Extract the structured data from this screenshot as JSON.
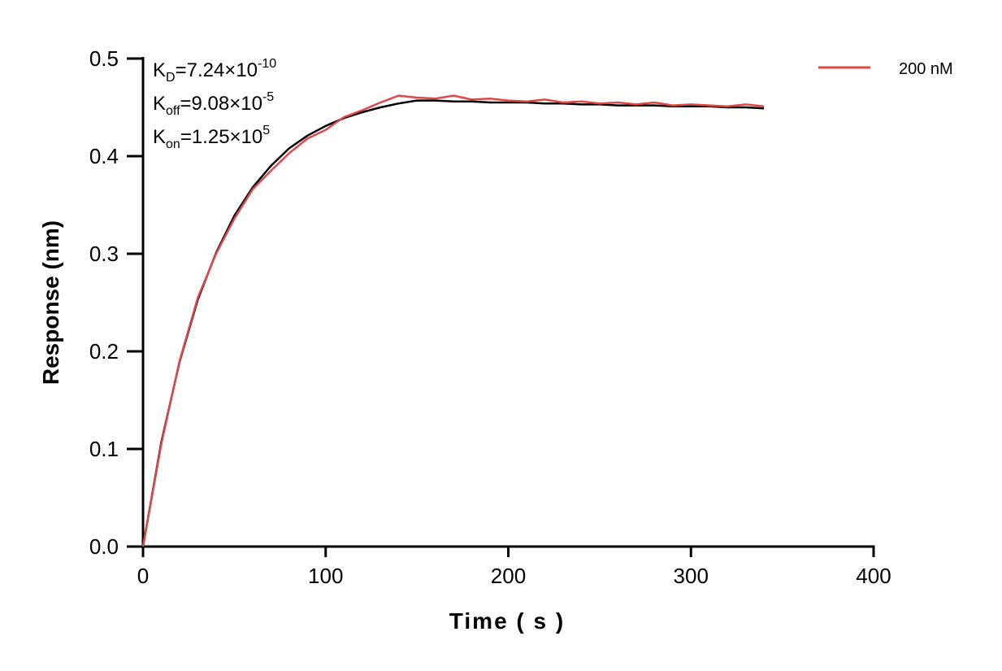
{
  "chart_data": {
    "type": "line",
    "title": "",
    "xlabel": "Time ( s )",
    "ylabel": "Response (nm)",
    "xlim": [
      0,
      400
    ],
    "ylim": [
      0,
      0.5
    ],
    "xticks": [
      "0",
      "100",
      "200",
      "300",
      "400"
    ],
    "yticks": [
      "0.0",
      "0.1",
      "0.2",
      "0.3",
      "0.4",
      "0.5"
    ],
    "grid": false,
    "legend_position": "top-right",
    "annotations": [
      {
        "base": "K",
        "sub": "D",
        "value": "=7.24×10",
        "exp": "-10"
      },
      {
        "base": "K",
        "sub": "off",
        "value": "=9.08×10",
        "exp": "-5"
      },
      {
        "base": "K",
        "sub": "on",
        "value": "=1.25×10",
        "exp": "5"
      }
    ],
    "x": [
      0,
      10,
      20,
      30,
      40,
      50,
      60,
      70,
      80,
      90,
      100,
      110,
      120,
      130,
      140,
      150,
      160,
      170,
      180,
      190,
      200,
      210,
      220,
      230,
      240,
      250,
      260,
      270,
      280,
      290,
      300,
      310,
      320,
      330,
      340
    ],
    "series": [
      {
        "name": "200 nM",
        "color": "#e04848",
        "values": [
          0,
          0.105,
          0.19,
          0.255,
          0.3,
          0.336,
          0.366,
          0.385,
          0.403,
          0.418,
          0.427,
          0.44,
          0.447,
          0.455,
          0.462,
          0.46,
          0.459,
          0.462,
          0.458,
          0.459,
          0.457,
          0.456,
          0.458,
          0.455,
          0.456,
          0.454,
          0.455,
          0.453,
          0.455,
          0.452,
          0.453,
          0.452,
          0.451,
          0.453,
          0.451
        ]
      },
      {
        "color": "#000000",
        "values": [
          0,
          0.107,
          0.189,
          0.253,
          0.301,
          0.339,
          0.368,
          0.39,
          0.408,
          0.421,
          0.431,
          0.439,
          0.445,
          0.45,
          0.454,
          0.457,
          0.457,
          0.456,
          0.456,
          0.455,
          0.455,
          0.455,
          0.454,
          0.454,
          0.453,
          0.453,
          0.452,
          0.452,
          0.452,
          0.451,
          0.451,
          0.451,
          0.45,
          0.45,
          0.449
        ]
      }
    ]
  }
}
